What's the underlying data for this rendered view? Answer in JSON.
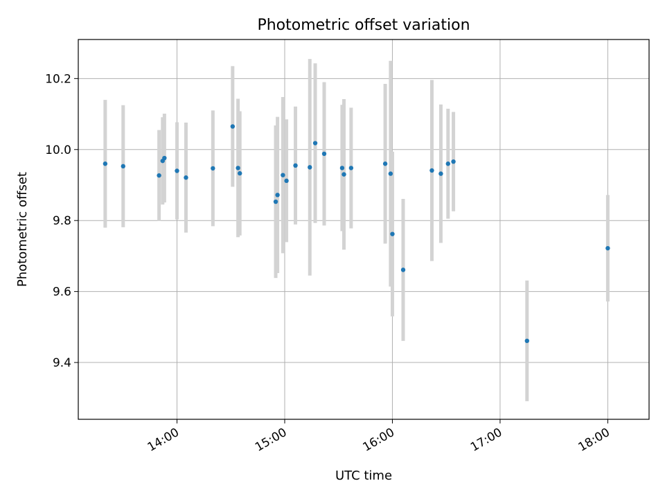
{
  "chart_data": {
    "type": "scatter",
    "title": "Photometric offset variation",
    "xlabel": "UTC time",
    "ylabel": "Photometric offset",
    "xlim": [
      "13:05",
      "18:23"
    ],
    "ylim": [
      9.24,
      10.31
    ],
    "grid": true,
    "x_ticks": [
      "14:00",
      "15:00",
      "16:00",
      "17:00",
      "18:00"
    ],
    "y_ticks": [
      9.4,
      9.6,
      9.8,
      10.0,
      10.2
    ],
    "marker_color": "#1f77b4",
    "errorbar_color": "#d3d3d3",
    "points": [
      {
        "x": "13:20",
        "y": 9.96,
        "err": 0.18
      },
      {
        "x": "13:30",
        "y": 9.953,
        "err": 0.172
      },
      {
        "x": "13:50",
        "y": 9.927,
        "err": 0.128
      },
      {
        "x": "13:52",
        "y": 9.968,
        "err": 0.123
      },
      {
        "x": "13:53",
        "y": 9.976,
        "err": 0.125
      },
      {
        "x": "14:00",
        "y": 9.94,
        "err": 0.137
      },
      {
        "x": "14:05",
        "y": 9.921,
        "err": 0.155
      },
      {
        "x": "14:20",
        "y": 9.947,
        "err": 0.163
      },
      {
        "x": "14:31",
        "y": 10.065,
        "err": 0.17
      },
      {
        "x": "14:34",
        "y": 9.948,
        "err": 0.195
      },
      {
        "x": "14:35",
        "y": 9.933,
        "err": 0.175
      },
      {
        "x": "14:55",
        "y": 9.853,
        "err": 0.215
      },
      {
        "x": "14:56",
        "y": 9.872,
        "err": 0.22
      },
      {
        "x": "14:59",
        "y": 9.928,
        "err": 0.22
      },
      {
        "x": "15:01",
        "y": 9.912,
        "err": 0.173
      },
      {
        "x": "15:06",
        "y": 9.955,
        "err": 0.166
      },
      {
        "x": "15:14",
        "y": 9.95,
        "err": 0.305
      },
      {
        "x": "15:17",
        "y": 10.018,
        "err": 0.225
      },
      {
        "x": "15:22",
        "y": 9.988,
        "err": 0.202
      },
      {
        "x": "15:32",
        "y": 9.948,
        "err": 0.178
      },
      {
        "x": "15:33",
        "y": 9.93,
        "err": 0.212
      },
      {
        "x": "15:37",
        "y": 9.948,
        "err": 0.17
      },
      {
        "x": "15:56",
        "y": 9.96,
        "err": 0.225
      },
      {
        "x": "15:59",
        "y": 9.932,
        "err": 0.318
      },
      {
        "x": "16:00",
        "y": 9.762,
        "err": 0.232
      },
      {
        "x": "16:06",
        "y": 9.661,
        "err": 0.2
      },
      {
        "x": "16:22",
        "y": 9.941,
        "err": 0.255
      },
      {
        "x": "16:27",
        "y": 9.932,
        "err": 0.195
      },
      {
        "x": "16:31",
        "y": 9.96,
        "err": 0.155
      },
      {
        "x": "16:34",
        "y": 9.966,
        "err": 0.14
      },
      {
        "x": "17:15",
        "y": 9.461,
        "err": 0.17
      },
      {
        "x": "18:00",
        "y": 9.722,
        "err": 0.15
      }
    ]
  }
}
